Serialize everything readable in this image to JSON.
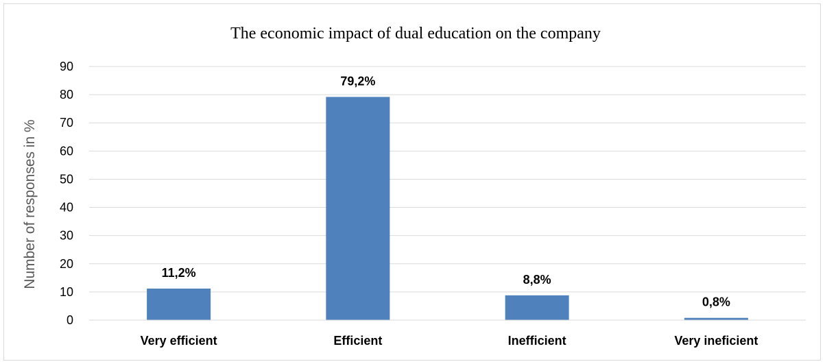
{
  "chart_data": {
    "type": "bar",
    "title": "The economic impact of dual education on the company",
    "xlabel": "",
    "ylabel": "Number of responses in %",
    "categories": [
      "Very efficient",
      "Efficient",
      "Inefficient",
      "Very ineficient"
    ],
    "values": [
      11.2,
      79.2,
      8.8,
      0.8
    ],
    "data_labels": [
      "11,2%",
      "79,2%",
      "8,8%",
      "0,8%"
    ],
    "ylim": [
      0,
      90
    ],
    "yticks": [
      0,
      10,
      20,
      30,
      40,
      50,
      60,
      70,
      80,
      90
    ],
    "grid": true,
    "legend": "none",
    "colors": {
      "bar": "#4f81bd",
      "grid": "#d9d9d9"
    }
  }
}
